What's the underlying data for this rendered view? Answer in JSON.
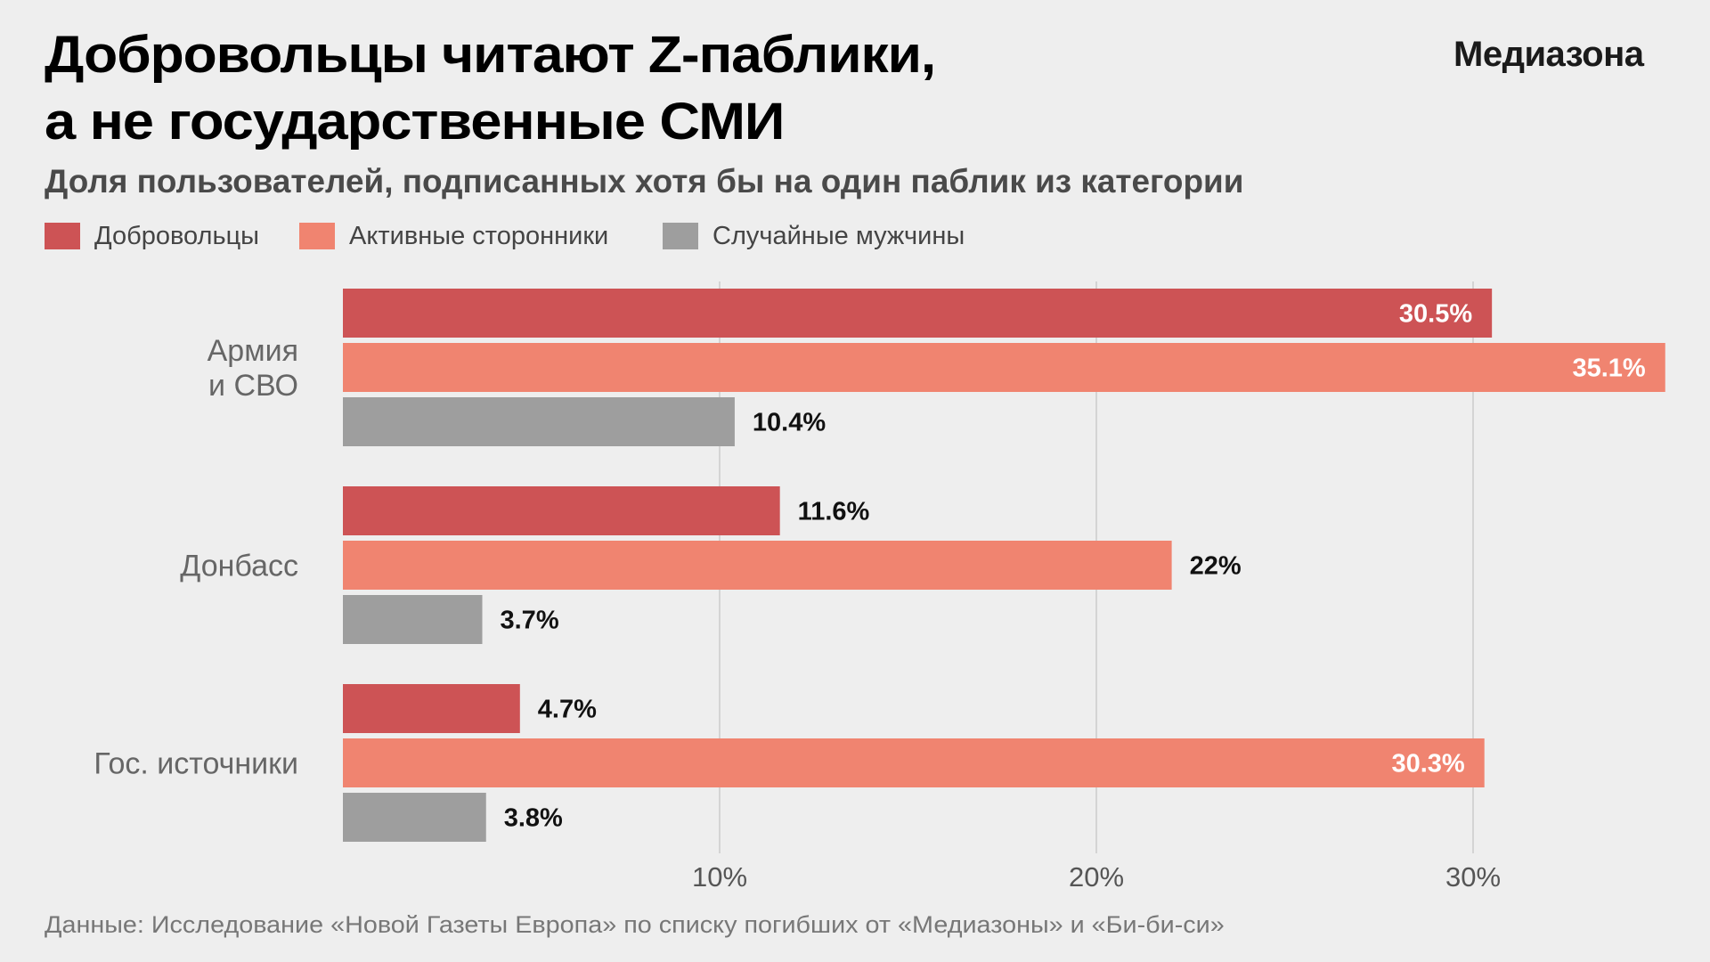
{
  "header": {
    "title_lines": [
      "Добровольцы читают Z-паблики,",
      "а не государственные СМИ"
    ],
    "logo": "Медиазона",
    "subtitle": "Доля пользователей, подписанных хотя бы на один паблик из категории"
  },
  "footnote": "Данные: Исследование «Новой Газеты Европа» по списку погибших от «Медиазоны» и «Би-би-си»",
  "colors": {
    "background": "#eeeeee",
    "volunteers": "#cd5355",
    "active_supporters": "#f08470",
    "random_men": "#9e9e9e",
    "gridline": "#d4d4d4"
  },
  "chart_data": {
    "type": "bar",
    "orientation": "horizontal",
    "title": "Добровольцы читают Z-паблики, а не государственные СМИ",
    "subtitle": "Доля пользователей, подписанных хотя бы на один паблик из категории",
    "categories": [
      "Армия\nи СВО",
      "Донбасс",
      "Гос. источники"
    ],
    "category_lines": [
      [
        "Армия",
        "и СВО"
      ],
      [
        "Донбасс"
      ],
      [
        "Гос. источники"
      ]
    ],
    "series": [
      {
        "name": "Добровольцы",
        "color": "#cd5355",
        "values": [
          30.5,
          11.6,
          4.7
        ],
        "labels": [
          "30.5%",
          "11.6%",
          "4.7%"
        ]
      },
      {
        "name": "Активные сторонники",
        "color": "#f08470",
        "values": [
          35.1,
          22,
          30.3
        ],
        "labels": [
          "35.1%",
          "22%",
          "30.3%"
        ]
      },
      {
        "name": "Случайные мужчины",
        "color": "#9e9e9e",
        "values": [
          10.4,
          3.7,
          3.8
        ],
        "labels": [
          "10.4%",
          "3.7%",
          "3.8%"
        ]
      }
    ],
    "xticks": [
      10,
      20,
      30
    ],
    "xtick_labels": [
      "10%",
      "20%",
      "30%"
    ],
    "xlim": [
      0,
      35.1
    ],
    "xlabel": "",
    "ylabel": "",
    "grid": "vertical",
    "legend": "top-left",
    "inside_label_threshold": 30
  }
}
